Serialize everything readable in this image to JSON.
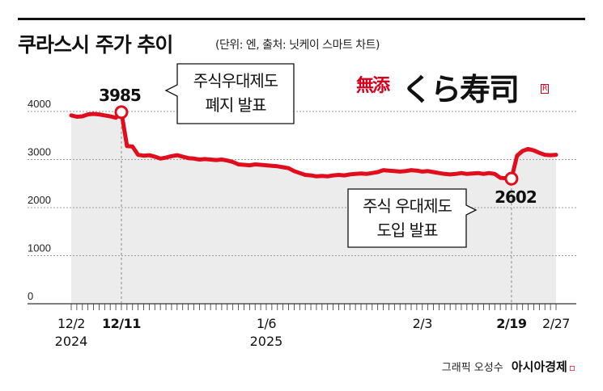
{
  "header": {
    "title": "쿠라스시 주가 추이",
    "subtitle": "(단위: 엔, 출처: 닛케이 스마트 차트)"
  },
  "logo": {
    "mutenka": "無添",
    "name": "くら寿司",
    "mark": "R"
  },
  "footer": {
    "credit": "그래픽 오성수",
    "brand": "아시아경제",
    "brand_mark": "▫"
  },
  "colors": {
    "line": "#e10d1c",
    "area": "#ececec",
    "grid": "#9a9a9a"
  },
  "chart_data": {
    "type": "line",
    "title": "쿠라스시 주가 추이",
    "ylim": [
      0,
      4500
    ],
    "yticks": [
      0,
      1000,
      2000,
      3000,
      4000
    ],
    "grid": true,
    "x_labels": [
      {
        "day": 0,
        "text": "12/2",
        "sub": "2024",
        "bold": false
      },
      {
        "day": 9,
        "text": "12/11",
        "sub": "",
        "bold": true
      },
      {
        "day": 35,
        "text": "1/6",
        "sub": "2025",
        "bold": false
      },
      {
        "day": 63,
        "text": "2/3",
        "sub": "",
        "bold": false
      },
      {
        "day": 79,
        "text": "2/19",
        "sub": "",
        "bold": true
      },
      {
        "day": 87,
        "text": "2/27",
        "sub": "",
        "bold": false
      }
    ],
    "series": [
      {
        "points": [
          [
            0,
            3920
          ],
          [
            1,
            3890
          ],
          [
            2,
            3900
          ],
          [
            3,
            3940
          ],
          [
            4,
            3950
          ],
          [
            5,
            3940
          ],
          [
            6,
            3920
          ],
          [
            7,
            3900
          ],
          [
            8,
            3870
          ],
          [
            9,
            3985
          ],
          [
            10,
            3280
          ],
          [
            11,
            3270
          ],
          [
            12,
            3100
          ],
          [
            13,
            3080
          ],
          [
            14,
            3090
          ],
          [
            15,
            3060
          ],
          [
            16,
            3020
          ],
          [
            17,
            3040
          ],
          [
            18,
            3070
          ],
          [
            19,
            3090
          ],
          [
            20,
            3060
          ],
          [
            21,
            3030
          ],
          [
            22,
            3020
          ],
          [
            23,
            3000
          ],
          [
            24,
            3010
          ],
          [
            25,
            3000
          ],
          [
            26,
            2990
          ],
          [
            27,
            3000
          ],
          [
            28,
            2980
          ],
          [
            29,
            2950
          ],
          [
            30,
            2900
          ],
          [
            31,
            2890
          ],
          [
            32,
            2880
          ],
          [
            33,
            2900
          ],
          [
            34,
            2890
          ],
          [
            35,
            2880
          ],
          [
            36,
            2870
          ],
          [
            37,
            2860
          ],
          [
            38,
            2840
          ],
          [
            39,
            2820
          ],
          [
            40,
            2760
          ],
          [
            41,
            2720
          ],
          [
            42,
            2680
          ],
          [
            43,
            2670
          ],
          [
            44,
            2650
          ],
          [
            45,
            2660
          ],
          [
            46,
            2650
          ],
          [
            47,
            2670
          ],
          [
            48,
            2680
          ],
          [
            49,
            2670
          ],
          [
            50,
            2690
          ],
          [
            51,
            2700
          ],
          [
            52,
            2710
          ],
          [
            53,
            2700
          ],
          [
            54,
            2720
          ],
          [
            55,
            2740
          ],
          [
            56,
            2780
          ],
          [
            57,
            2770
          ],
          [
            58,
            2760
          ],
          [
            59,
            2750
          ],
          [
            60,
            2760
          ],
          [
            61,
            2780
          ],
          [
            62,
            2770
          ],
          [
            63,
            2750
          ],
          [
            64,
            2760
          ],
          [
            65,
            2740
          ],
          [
            66,
            2720
          ],
          [
            67,
            2700
          ],
          [
            68,
            2690
          ],
          [
            69,
            2700
          ],
          [
            70,
            2720
          ],
          [
            71,
            2700
          ],
          [
            72,
            2710
          ],
          [
            73,
            2720
          ],
          [
            74,
            2700
          ],
          [
            75,
            2720
          ],
          [
            76,
            2700
          ],
          [
            77,
            2620
          ],
          [
            78,
            2610
          ],
          [
            79,
            2602
          ],
          [
            80,
            3080
          ],
          [
            81,
            3180
          ],
          [
            82,
            3220
          ],
          [
            83,
            3190
          ],
          [
            84,
            3140
          ],
          [
            85,
            3100
          ],
          [
            86,
            3090
          ],
          [
            87,
            3100
          ]
        ]
      }
    ],
    "annotations": [
      {
        "day": 9,
        "value": 3985,
        "label": "3985",
        "callout": [
          "주식우대제도",
          "폐지 발표"
        ]
      },
      {
        "day": 79,
        "value": 2602,
        "label": "2602",
        "callout": [
          "주식 우대제도",
          "도입 발표"
        ]
      }
    ]
  }
}
